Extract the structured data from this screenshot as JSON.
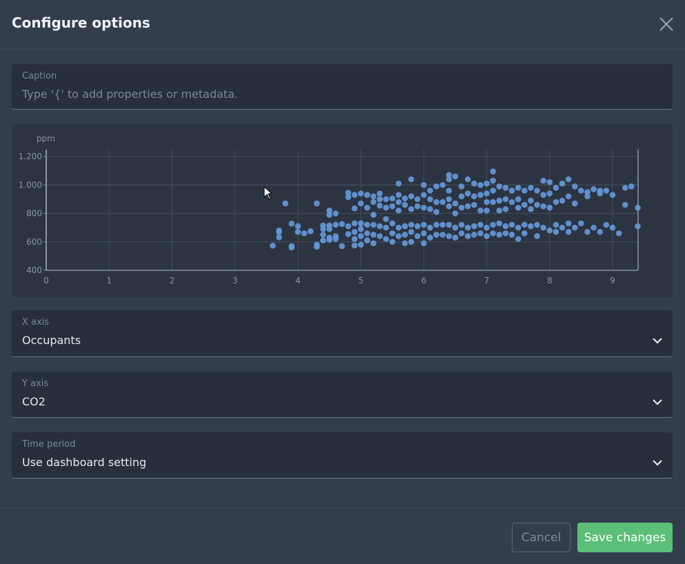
{
  "dialog": {
    "title": "Configure options",
    "close_icon": "close-icon"
  },
  "caption": {
    "label": "Caption",
    "placeholder": "Type '{' to add properties or metadata."
  },
  "x_axis": {
    "label": "X axis",
    "value": "Occupants"
  },
  "y_axis": {
    "label": "Y axis",
    "value": "CO2"
  },
  "time_period": {
    "label": "Time period",
    "value": "Use dashboard setting"
  },
  "footer": {
    "cancel": "Cancel",
    "save": "Save changes"
  },
  "colors": {
    "accent": "#5bbf78",
    "point": "#6498d8"
  },
  "chart_data": {
    "type": "scatter",
    "title": "",
    "xlabel": "",
    "ylabel": "ppm",
    "xlim": [
      0,
      9.4
    ],
    "ylim": [
      400,
      1200
    ],
    "xticks": [
      "0",
      "1",
      "2",
      "3",
      "4",
      "5",
      "6",
      "7",
      "8",
      "9"
    ],
    "yticks": [
      "400",
      "600",
      "800",
      "1.000",
      "1.200"
    ],
    "grid": true,
    "points": [
      [
        3.6,
        573
      ],
      [
        3.7,
        632
      ],
      [
        3.7,
        680
      ],
      [
        3.7,
        668
      ],
      [
        3.8,
        870
      ],
      [
        3.9,
        728
      ],
      [
        3.9,
        560
      ],
      [
        3.9,
        570
      ],
      [
        4.0,
        710
      ],
      [
        4.0,
        670
      ],
      [
        4.1,
        660
      ],
      [
        4.2,
        675
      ],
      [
        4.3,
        870
      ],
      [
        4.3,
        565
      ],
      [
        4.3,
        580
      ],
      [
        4.4,
        715
      ],
      [
        4.4,
        690
      ],
      [
        4.4,
        650
      ],
      [
        4.4,
        610
      ],
      [
        4.5,
        820
      ],
      [
        4.5,
        790
      ],
      [
        4.5,
        715
      ],
      [
        4.5,
        690
      ],
      [
        4.5,
        630
      ],
      [
        4.5,
        615
      ],
      [
        4.6,
        800
      ],
      [
        4.6,
        720
      ],
      [
        4.6,
        640
      ],
      [
        4.6,
        620
      ],
      [
        4.7,
        725
      ],
      [
        4.7,
        570
      ],
      [
        4.8,
        945
      ],
      [
        4.8,
        915
      ],
      [
        4.8,
        710
      ],
      [
        4.8,
        655
      ],
      [
        4.9,
        930
      ],
      [
        4.9,
        835
      ],
      [
        4.9,
        730
      ],
      [
        4.9,
        670
      ],
      [
        4.9,
        620
      ],
      [
        4.9,
        575
      ],
      [
        5.0,
        940
      ],
      [
        5.0,
        870
      ],
      [
        5.0,
        730
      ],
      [
        5.0,
        690
      ],
      [
        5.0,
        640
      ],
      [
        5.0,
        580
      ],
      [
        5.1,
        930
      ],
      [
        5.1,
        840
      ],
      [
        5.1,
        720
      ],
      [
        5.1,
        660
      ],
      [
        5.1,
        610
      ],
      [
        5.2,
        920
      ],
      [
        5.2,
        880
      ],
      [
        5.2,
        790
      ],
      [
        5.2,
        720
      ],
      [
        5.2,
        650
      ],
      [
        5.2,
        590
      ],
      [
        5.3,
        940
      ],
      [
        5.3,
        900
      ],
      [
        5.3,
        855
      ],
      [
        5.3,
        710
      ],
      [
        5.3,
        640
      ],
      [
        5.4,
        900
      ],
      [
        5.4,
        840
      ],
      [
        5.4,
        760
      ],
      [
        5.4,
        700
      ],
      [
        5.4,
        620
      ],
      [
        5.5,
        905
      ],
      [
        5.5,
        850
      ],
      [
        5.5,
        730
      ],
      [
        5.5,
        660
      ],
      [
        5.5,
        600
      ],
      [
        5.6,
        1010
      ],
      [
        5.6,
        930
      ],
      [
        5.6,
        880
      ],
      [
        5.6,
        820
      ],
      [
        5.6,
        700
      ],
      [
        5.6,
        640
      ],
      [
        5.7,
        905
      ],
      [
        5.7,
        860
      ],
      [
        5.7,
        710
      ],
      [
        5.7,
        650
      ],
      [
        5.7,
        590
      ],
      [
        5.8,
        1040
      ],
      [
        5.8,
        920
      ],
      [
        5.8,
        830
      ],
      [
        5.8,
        720
      ],
      [
        5.8,
        670
      ],
      [
        5.8,
        600
      ],
      [
        5.9,
        900
      ],
      [
        5.9,
        850
      ],
      [
        5.9,
        710
      ],
      [
        5.9,
        640
      ],
      [
        6.0,
        1000
      ],
      [
        6.0,
        930
      ],
      [
        6.0,
        840
      ],
      [
        6.0,
        720
      ],
      [
        6.0,
        660
      ],
      [
        6.0,
        590
      ],
      [
        6.1,
        960
      ],
      [
        6.1,
        900
      ],
      [
        6.1,
        830
      ],
      [
        6.1,
        700
      ],
      [
        6.1,
        630
      ],
      [
        6.2,
        990
      ],
      [
        6.2,
        880
      ],
      [
        6.2,
        810
      ],
      [
        6.2,
        720
      ],
      [
        6.2,
        650
      ],
      [
        6.3,
        1000
      ],
      [
        6.3,
        880
      ],
      [
        6.3,
        720
      ],
      [
        6.3,
        650
      ],
      [
        6.4,
        1070
      ],
      [
        6.4,
        1040
      ],
      [
        6.4,
        960
      ],
      [
        6.4,
        900
      ],
      [
        6.4,
        850
      ],
      [
        6.4,
        720
      ],
      [
        6.4,
        640
      ],
      [
        6.5,
        1060
      ],
      [
        6.5,
        870
      ],
      [
        6.5,
        800
      ],
      [
        6.5,
        700
      ],
      [
        6.5,
        630
      ],
      [
        6.6,
        990
      ],
      [
        6.6,
        920
      ],
      [
        6.6,
        840
      ],
      [
        6.6,
        720
      ],
      [
        6.6,
        660
      ],
      [
        6.7,
        1040
      ],
      [
        6.7,
        940
      ],
      [
        6.7,
        850
      ],
      [
        6.7,
        700
      ],
      [
        6.7,
        640
      ],
      [
        6.8,
        1010
      ],
      [
        6.8,
        920
      ],
      [
        6.8,
        860
      ],
      [
        6.8,
        710
      ],
      [
        6.8,
        650
      ],
      [
        6.9,
        1000
      ],
      [
        6.9,
        930
      ],
      [
        6.9,
        820
      ],
      [
        6.9,
        720
      ],
      [
        6.9,
        660
      ],
      [
        7.0,
        1010
      ],
      [
        7.0,
        940
      ],
      [
        7.0,
        880
      ],
      [
        7.0,
        820
      ],
      [
        7.0,
        700
      ],
      [
        7.0,
        640
      ],
      [
        7.1,
        1095
      ],
      [
        7.1,
        1030
      ],
      [
        7.1,
        960
      ],
      [
        7.1,
        880
      ],
      [
        7.1,
        720
      ],
      [
        7.1,
        660
      ],
      [
        7.2,
        990
      ],
      [
        7.2,
        890
      ],
      [
        7.2,
        820
      ],
      [
        7.2,
        730
      ],
      [
        7.2,
        650
      ],
      [
        7.3,
        980
      ],
      [
        7.3,
        900
      ],
      [
        7.3,
        830
      ],
      [
        7.3,
        710
      ],
      [
        7.3,
        660
      ],
      [
        7.4,
        960
      ],
      [
        7.4,
        880
      ],
      [
        7.4,
        720
      ],
      [
        7.4,
        650
      ],
      [
        7.5,
        980
      ],
      [
        7.5,
        900
      ],
      [
        7.5,
        840
      ],
      [
        7.5,
        700
      ],
      [
        7.5,
        620
      ],
      [
        7.6,
        960
      ],
      [
        7.6,
        860
      ],
      [
        7.6,
        720
      ],
      [
        7.6,
        660
      ],
      [
        7.7,
        980
      ],
      [
        7.7,
        890
      ],
      [
        7.7,
        830
      ],
      [
        7.7,
        710
      ],
      [
        7.8,
        960
      ],
      [
        7.8,
        860
      ],
      [
        7.8,
        720
      ],
      [
        7.8,
        640
      ],
      [
        7.9,
        1030
      ],
      [
        7.9,
        930
      ],
      [
        7.9,
        850
      ],
      [
        7.9,
        700
      ],
      [
        8.0,
        1020
      ],
      [
        8.0,
        940
      ],
      [
        8.0,
        840
      ],
      [
        8.0,
        680
      ],
      [
        8.1,
        980
      ],
      [
        8.1,
        880
      ],
      [
        8.1,
        720
      ],
      [
        8.1,
        670
      ],
      [
        8.2,
        1010
      ],
      [
        8.2,
        890
      ],
      [
        8.2,
        700
      ],
      [
        8.3,
        1040
      ],
      [
        8.3,
        920
      ],
      [
        8.3,
        730
      ],
      [
        8.3,
        670
      ],
      [
        8.4,
        990
      ],
      [
        8.4,
        870
      ],
      [
        8.4,
        700
      ],
      [
        8.5,
        960
      ],
      [
        8.5,
        730
      ],
      [
        8.6,
        950
      ],
      [
        8.6,
        920
      ],
      [
        8.6,
        670
      ],
      [
        8.7,
        970
      ],
      [
        8.7,
        700
      ],
      [
        8.8,
        960
      ],
      [
        8.8,
        940
      ],
      [
        8.8,
        670
      ],
      [
        8.9,
        960
      ],
      [
        8.9,
        720
      ],
      [
        9.0,
        930
      ],
      [
        9.0,
        700
      ],
      [
        9.2,
        980
      ],
      [
        9.2,
        860
      ],
      [
        9.1,
        660
      ],
      [
        9.3,
        990
      ],
      [
        9.4,
        840
      ],
      [
        9.4,
        710
      ]
    ]
  }
}
